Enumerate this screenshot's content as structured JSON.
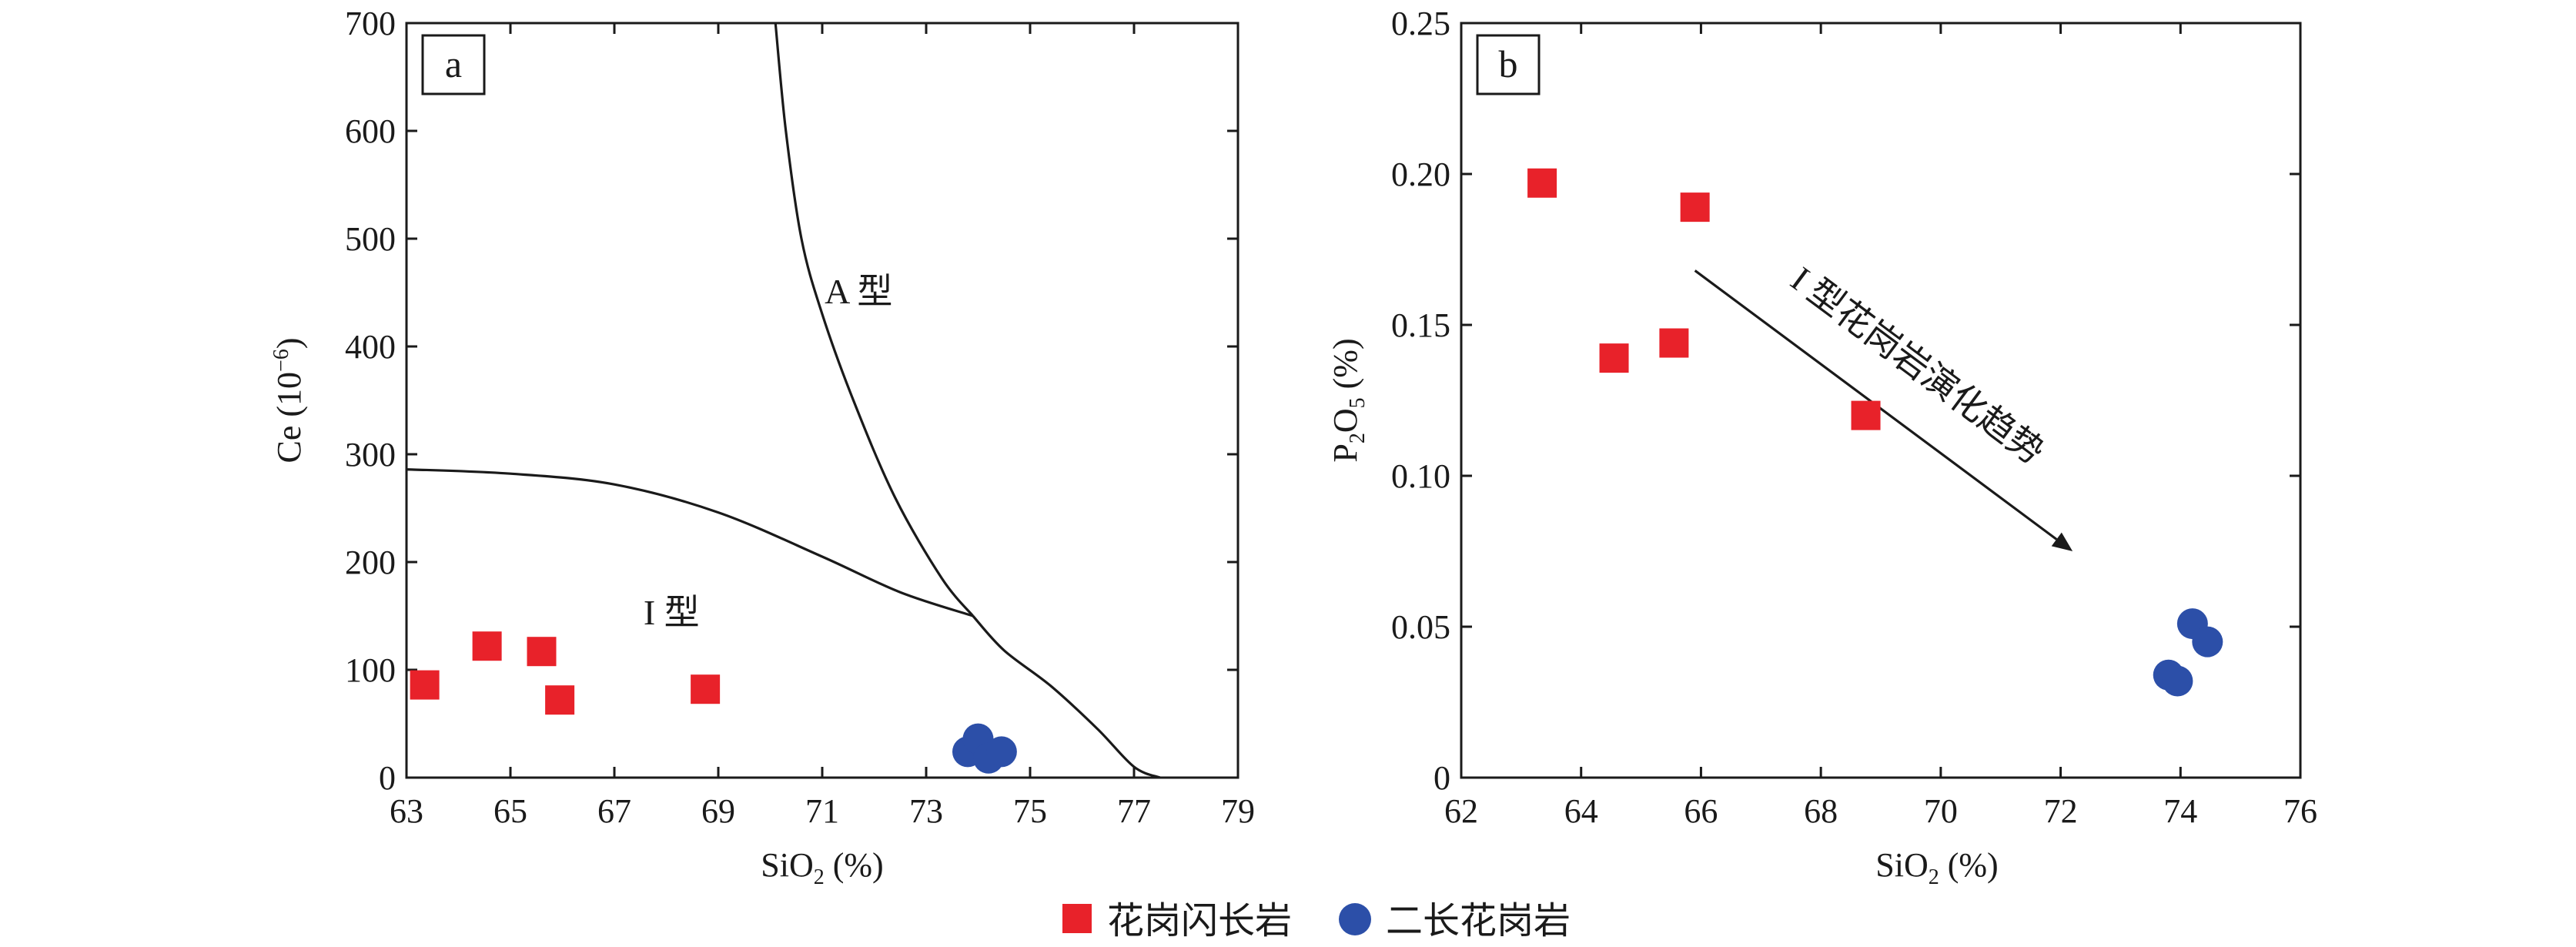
{
  "colors": {
    "granodiorite": "#e8222a",
    "monzogranite": "#2c4fa8",
    "ink": "#1a1a1a"
  },
  "legend": [
    {
      "label": "花岗闪长岩",
      "marker": "square",
      "color": "#e8222a"
    },
    {
      "label": "二长花岗岩",
      "marker": "circle",
      "color": "#2c4fa8"
    }
  ],
  "chart_data": [
    {
      "type": "scatter",
      "panel": "a",
      "xlabel": "SiO2 (%)",
      "ylabel": "Ce (10−6)",
      "xlim": [
        63,
        79
      ],
      "ylim": [
        0,
        700
      ],
      "xticks": [
        63,
        65,
        67,
        69,
        71,
        73,
        75,
        77,
        79
      ],
      "yticks": [
        0,
        100,
        200,
        300,
        400,
        500,
        600,
        700
      ],
      "grid": false,
      "regions": [
        {
          "label": "A 型",
          "x": 71.7,
          "y": 440
        },
        {
          "label": "I 型",
          "x": 68.1,
          "y": 142
        }
      ],
      "boundaries": [
        {
          "name": "I-A divider (upper)",
          "points": [
            [
              63,
              286
            ],
            [
              65,
              282
            ],
            [
              67,
              272
            ],
            [
              69,
              246
            ],
            [
              71,
              205
            ],
            [
              72.5,
              172
            ],
            [
              73.9,
              150
            ]
          ]
        },
        {
          "name": "steep curve",
          "points": [
            [
              70.1,
              700
            ],
            [
              70.3,
              600
            ],
            [
              70.6,
              500
            ],
            [
              71.0,
              430
            ],
            [
              71.6,
              350
            ],
            [
              72.4,
              260
            ],
            [
              73.3,
              185
            ],
            [
              73.9,
              150
            ]
          ]
        },
        {
          "name": "lower tail",
          "points": [
            [
              73.9,
              150
            ],
            [
              74.5,
              118
            ],
            [
              75.4,
              85
            ],
            [
              76.3,
              45
            ],
            [
              77.0,
              10
            ],
            [
              77.5,
              0
            ]
          ]
        }
      ],
      "series": [
        {
          "name": "花岗闪长岩",
          "marker": "square",
          "points": [
            [
              63.35,
              86
            ],
            [
              64.55,
              122
            ],
            [
              65.6,
              117
            ],
            [
              65.95,
              72
            ],
            [
              68.75,
              82
            ]
          ]
        },
        {
          "name": "二长花岗岩",
          "marker": "circle",
          "points": [
            [
              73.8,
              24
            ],
            [
              74.0,
              36
            ],
            [
              74.2,
              18
            ],
            [
              74.45,
              24
            ]
          ]
        }
      ]
    },
    {
      "type": "scatter",
      "panel": "b",
      "xlabel": "SiO2 (%)",
      "ylabel": "P2O5 (%)",
      "xlim": [
        62,
        76
      ],
      "ylim": [
        0,
        0.25
      ],
      "xticks": [
        62,
        64,
        66,
        68,
        70,
        72,
        74,
        76
      ],
      "yticks": [
        0,
        0.05,
        0.1,
        0.15,
        0.2,
        0.25
      ],
      "ytick_labels": [
        "0",
        "0.05",
        "0.10",
        "0.15",
        "0.20",
        "0.25"
      ],
      "grid": false,
      "trend": {
        "label": "I 型花岗岩演化趋势",
        "from": [
          65.9,
          0.168
        ],
        "to": [
          72.2,
          0.075
        ]
      },
      "series": [
        {
          "name": "花岗闪长岩",
          "marker": "square",
          "points": [
            [
              63.35,
              0.197
            ],
            [
              64.55,
              0.139
            ],
            [
              65.55,
              0.144
            ],
            [
              65.9,
              0.189
            ],
            [
              68.75,
              0.12
            ]
          ]
        },
        {
          "name": "二长花岗岩",
          "marker": "circle",
          "points": [
            [
              73.8,
              0.034
            ],
            [
              73.95,
              0.032
            ],
            [
              74.2,
              0.051
            ],
            [
              74.45,
              0.045
            ]
          ]
        }
      ]
    }
  ]
}
